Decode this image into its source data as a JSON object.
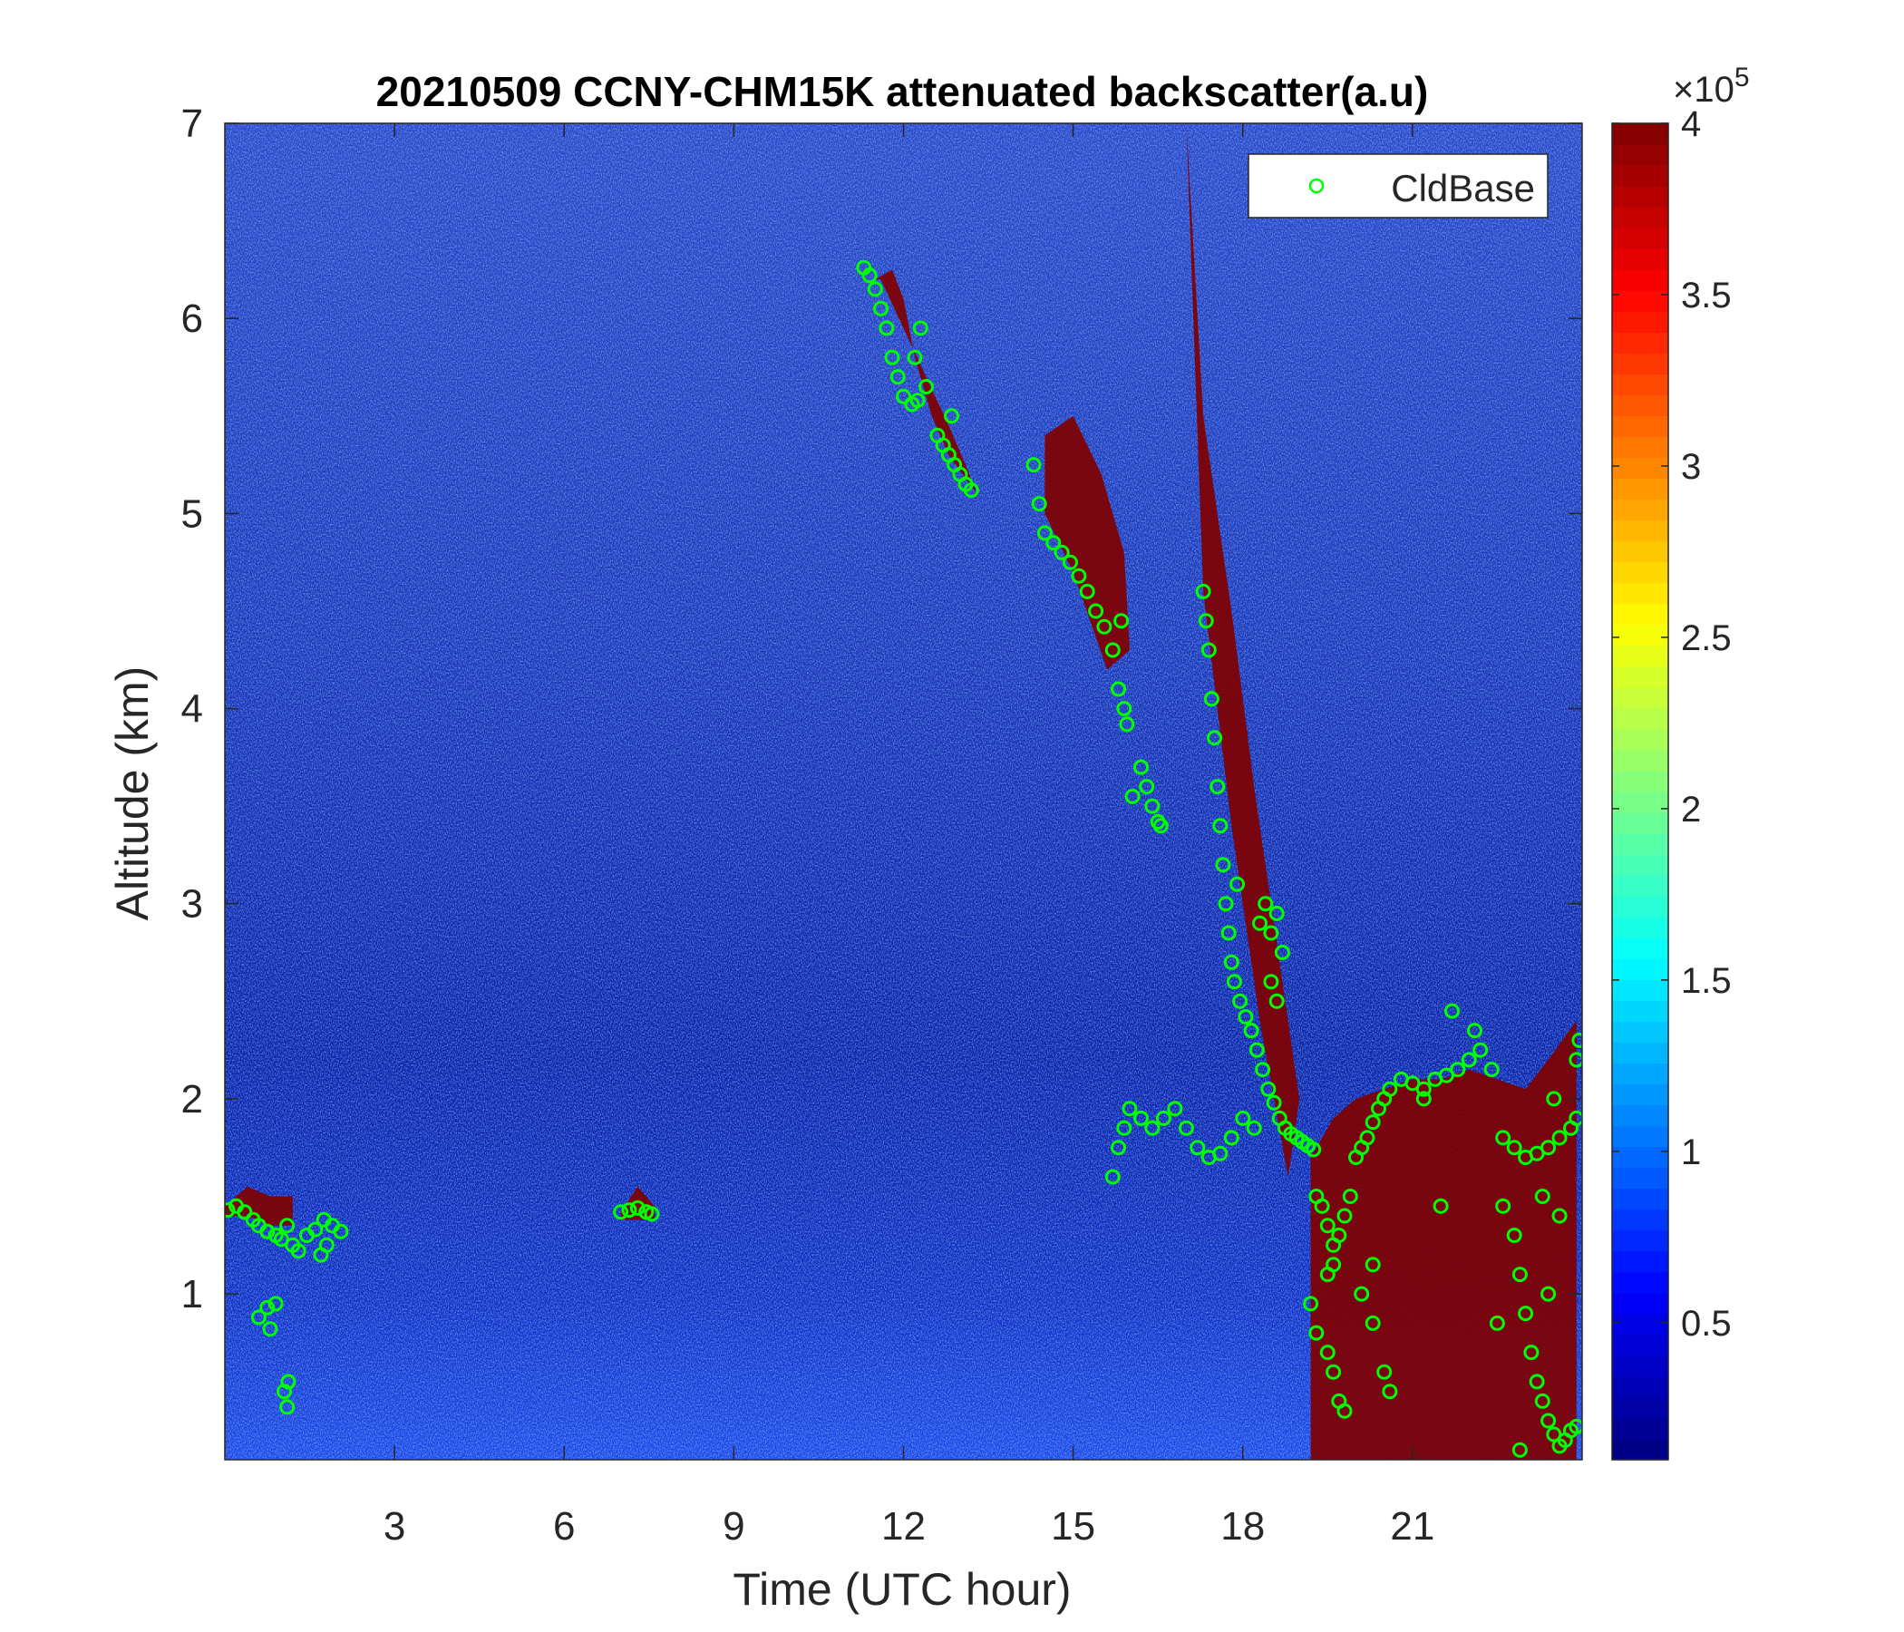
{
  "chart_data": {
    "type": "heatmap",
    "title": "20210509 CCNY-CHM15K attenuated backscatter(a.u)",
    "xlabel": "Time (UTC hour)",
    "ylabel": "Altitude (km)",
    "xlim": [
      0,
      24
    ],
    "ylim": [
      0.15,
      7
    ],
    "x_ticks": [
      3,
      6,
      9,
      12,
      15,
      18,
      21
    ],
    "y_ticks": [
      1,
      2,
      3,
      4,
      5,
      6,
      7
    ],
    "colorbar": {
      "colormap": "jet",
      "range": [
        0.1,
        4
      ],
      "ticks": [
        0.5,
        1,
        1.5,
        2,
        2.5,
        3,
        3.5,
        4
      ],
      "exponent_label": "×10",
      "exponent": "5"
    },
    "legend": {
      "position": "top-right",
      "entries": [
        "CldBase"
      ],
      "marker_color": "#00ff00"
    },
    "saturated_regions": [
      {
        "x": [
          11.5,
          11.8,
          12.0,
          12.2,
          12.5,
          12.8,
          13.3,
          13.1,
          12.8,
          12.4,
          12.0,
          11.6
        ],
        "y": [
          6.2,
          6.25,
          6.1,
          5.8,
          5.5,
          5.3,
          5.1,
          5.25,
          5.45,
          5.7,
          5.95,
          6.2
        ]
      },
      {
        "x": [
          14.5,
          15.0,
          15.5,
          15.9,
          16.0,
          15.6,
          15.0,
          14.5
        ],
        "y": [
          5.4,
          5.5,
          5.2,
          4.8,
          4.3,
          4.2,
          4.7,
          5.0
        ]
      },
      {
        "x": [
          17.0,
          17.3,
          17.8,
          18.2,
          18.6,
          19.0,
          18.8,
          18.3,
          17.8,
          17.3
        ],
        "y": [
          7.0,
          5.5,
          4.5,
          3.6,
          2.8,
          2.0,
          1.6,
          2.4,
          3.4,
          4.6
        ]
      },
      {
        "x": [
          19.2,
          19.6,
          20.0,
          20.5,
          21.0,
          21.5,
          22.0,
          22.5,
          23.0,
          23.4,
          23.9,
          23.9,
          23.0,
          22.0,
          21.0,
          20.5,
          19.2
        ],
        "y": [
          1.7,
          1.9,
          2.0,
          2.05,
          2.1,
          2.1,
          2.15,
          2.1,
          2.05,
          2.2,
          2.4,
          0.15,
          0.15,
          0.15,
          0.15,
          0.15,
          0.15
        ]
      },
      {
        "x": [
          0.0,
          0.4,
          0.8,
          1.2,
          1.2,
          0.8,
          0.4,
          0.0
        ],
        "y": [
          1.45,
          1.55,
          1.5,
          1.5,
          1.35,
          1.35,
          1.4,
          1.4
        ]
      },
      {
        "x": [
          7.0,
          7.3,
          7.6,
          7.6,
          7.0
        ],
        "y": [
          1.42,
          1.55,
          1.45,
          1.38,
          1.38
        ]
      }
    ],
    "series": [
      {
        "name": "CldBase",
        "points": [
          [
            0.05,
            1.43
          ],
          [
            0.2,
            1.45
          ],
          [
            0.35,
            1.42
          ],
          [
            0.5,
            1.38
          ],
          [
            0.6,
            1.35
          ],
          [
            0.75,
            1.32
          ],
          [
            0.9,
            1.3
          ],
          [
            1.0,
            1.28
          ],
          [
            1.1,
            1.35
          ],
          [
            1.2,
            1.25
          ],
          [
            1.3,
            1.22
          ],
          [
            1.45,
            1.3
          ],
          [
            1.6,
            1.33
          ],
          [
            1.75,
            1.38
          ],
          [
            1.9,
            1.35
          ],
          [
            2.05,
            1.32
          ],
          [
            1.7,
            1.2
          ],
          [
            1.8,
            1.25
          ],
          [
            0.6,
            0.88
          ],
          [
            0.75,
            0.93
          ],
          [
            0.8,
            0.82
          ],
          [
            0.9,
            0.95
          ],
          [
            1.05,
            0.5
          ],
          [
            1.1,
            0.42
          ],
          [
            1.12,
            0.55
          ],
          [
            7.0,
            1.42
          ],
          [
            7.15,
            1.43
          ],
          [
            7.3,
            1.44
          ],
          [
            7.45,
            1.42
          ],
          [
            7.55,
            1.41
          ],
          [
            11.3,
            6.26
          ],
          [
            11.4,
            6.22
          ],
          [
            11.5,
            6.15
          ],
          [
            11.6,
            6.05
          ],
          [
            11.7,
            5.95
          ],
          [
            11.8,
            5.8
          ],
          [
            11.9,
            5.7
          ],
          [
            12.0,
            5.6
          ],
          [
            12.15,
            5.56
          ],
          [
            12.25,
            5.58
          ],
          [
            12.4,
            5.65
          ],
          [
            12.2,
            5.8
          ],
          [
            12.3,
            5.95
          ],
          [
            12.6,
            5.4
          ],
          [
            12.7,
            5.35
          ],
          [
            12.8,
            5.3
          ],
          [
            12.9,
            5.25
          ],
          [
            13.0,
            5.2
          ],
          [
            13.1,
            5.15
          ],
          [
            13.2,
            5.12
          ],
          [
            12.85,
            5.5
          ],
          [
            14.3,
            5.25
          ],
          [
            14.4,
            5.05
          ],
          [
            14.5,
            4.9
          ],
          [
            14.65,
            4.85
          ],
          [
            14.8,
            4.8
          ],
          [
            14.95,
            4.75
          ],
          [
            15.1,
            4.68
          ],
          [
            15.25,
            4.6
          ],
          [
            15.4,
            4.5
          ],
          [
            15.55,
            4.42
          ],
          [
            15.7,
            4.3
          ],
          [
            15.8,
            4.1
          ],
          [
            15.9,
            4.0
          ],
          [
            15.95,
            3.92
          ],
          [
            15.85,
            4.45
          ],
          [
            16.05,
            3.55
          ],
          [
            16.2,
            3.7
          ],
          [
            16.3,
            3.6
          ],
          [
            16.4,
            3.5
          ],
          [
            16.5,
            3.42
          ],
          [
            16.55,
            3.4
          ],
          [
            15.7,
            1.6
          ],
          [
            15.8,
            1.75
          ],
          [
            15.9,
            1.85
          ],
          [
            16.0,
            1.95
          ],
          [
            16.2,
            1.9
          ],
          [
            16.4,
            1.85
          ],
          [
            16.6,
            1.9
          ],
          [
            16.8,
            1.95
          ],
          [
            17.0,
            1.85
          ],
          [
            17.2,
            1.75
          ],
          [
            17.4,
            1.7
          ],
          [
            17.6,
            1.72
          ],
          [
            17.8,
            1.8
          ],
          [
            18.0,
            1.9
          ],
          [
            18.2,
            1.85
          ],
          [
            17.3,
            4.6
          ],
          [
            17.35,
            4.45
          ],
          [
            17.4,
            4.3
          ],
          [
            17.45,
            4.05
          ],
          [
            17.5,
            3.85
          ],
          [
            17.55,
            3.6
          ],
          [
            17.6,
            3.4
          ],
          [
            17.65,
            3.2
          ],
          [
            17.7,
            3.0
          ],
          [
            17.75,
            2.85
          ],
          [
            17.8,
            2.7
          ],
          [
            17.85,
            2.6
          ],
          [
            17.95,
            2.5
          ],
          [
            18.05,
            2.42
          ],
          [
            18.15,
            2.35
          ],
          [
            18.25,
            2.25
          ],
          [
            18.35,
            2.15
          ],
          [
            18.45,
            2.05
          ],
          [
            18.55,
            1.98
          ],
          [
            18.65,
            1.9
          ],
          [
            18.75,
            1.85
          ],
          [
            18.85,
            1.82
          ],
          [
            18.95,
            1.8
          ],
          [
            19.05,
            1.78
          ],
          [
            19.15,
            1.76
          ],
          [
            19.25,
            1.74
          ],
          [
            18.3,
            2.9
          ],
          [
            18.4,
            3.0
          ],
          [
            18.5,
            2.85
          ],
          [
            18.6,
            2.95
          ],
          [
            18.7,
            2.75
          ],
          [
            18.6,
            2.5
          ],
          [
            18.5,
            2.6
          ],
          [
            17.9,
            3.1
          ],
          [
            19.3,
            1.5
          ],
          [
            19.4,
            1.45
          ],
          [
            19.5,
            1.35
          ],
          [
            19.6,
            1.25
          ],
          [
            19.7,
            1.3
          ],
          [
            19.8,
            1.4
          ],
          [
            19.9,
            1.5
          ],
          [
            19.5,
            1.1
          ],
          [
            19.6,
            1.15
          ],
          [
            19.2,
            0.95
          ],
          [
            19.3,
            0.8
          ],
          [
            19.5,
            0.7
          ],
          [
            19.6,
            0.6
          ],
          [
            19.7,
            0.45
          ],
          [
            19.8,
            0.4
          ],
          [
            20.1,
            1.0
          ],
          [
            20.3,
            1.15
          ],
          [
            20.0,
            1.7
          ],
          [
            20.1,
            1.75
          ],
          [
            20.2,
            1.8
          ],
          [
            20.3,
            1.88
          ],
          [
            20.4,
            1.95
          ],
          [
            20.5,
            2.0
          ],
          [
            20.6,
            2.05
          ],
          [
            20.8,
            2.1
          ],
          [
            21.0,
            2.08
          ],
          [
            21.2,
            2.05
          ],
          [
            21.4,
            2.1
          ],
          [
            21.6,
            2.12
          ],
          [
            21.8,
            2.15
          ],
          [
            22.0,
            2.2
          ],
          [
            22.2,
            2.25
          ],
          [
            22.4,
            2.15
          ],
          [
            22.1,
            2.35
          ],
          [
            21.7,
            2.45
          ],
          [
            21.2,
            2.0
          ],
          [
            22.6,
            1.8
          ],
          [
            22.8,
            1.75
          ],
          [
            23.0,
            1.7
          ],
          [
            23.2,
            1.72
          ],
          [
            23.4,
            1.75
          ],
          [
            23.6,
            1.8
          ],
          [
            23.8,
            1.85
          ],
          [
            23.9,
            1.9
          ],
          [
            23.95,
            2.3
          ],
          [
            23.9,
            2.2
          ],
          [
            23.5,
            2.0
          ],
          [
            22.8,
            1.3
          ],
          [
            22.9,
            1.1
          ],
          [
            23.0,
            0.9
          ],
          [
            23.1,
            0.7
          ],
          [
            23.2,
            0.55
          ],
          [
            23.3,
            0.45
          ],
          [
            23.4,
            0.35
          ],
          [
            23.5,
            0.28
          ],
          [
            23.6,
            0.22
          ],
          [
            23.7,
            0.25
          ],
          [
            23.8,
            0.3
          ],
          [
            23.9,
            0.32
          ],
          [
            22.9,
            0.2
          ],
          [
            22.6,
            1.45
          ],
          [
            23.3,
            1.5
          ],
          [
            23.6,
            1.4
          ],
          [
            20.5,
            0.6
          ],
          [
            20.6,
            0.5
          ],
          [
            20.3,
            0.85
          ],
          [
            21.5,
            1.45
          ],
          [
            22.5,
            0.85
          ],
          [
            23.4,
            1.0
          ]
        ]
      }
    ]
  }
}
